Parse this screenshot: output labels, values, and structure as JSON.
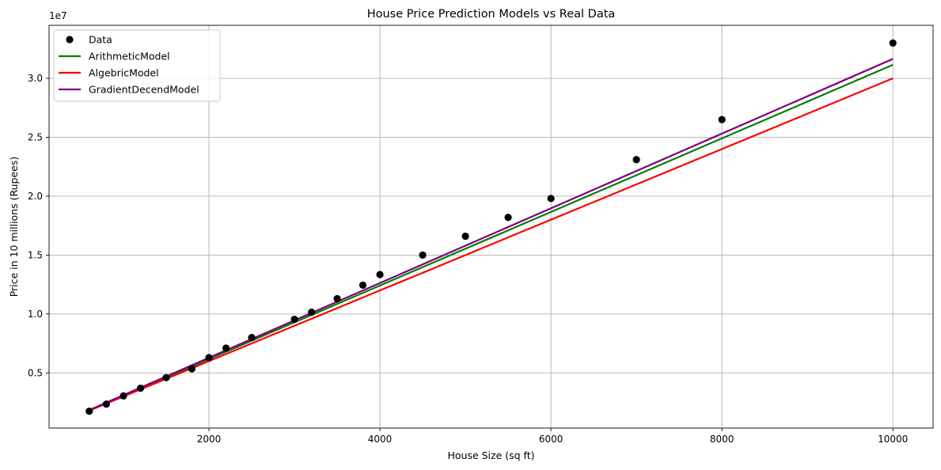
{
  "chart_data": {
    "type": "scatter",
    "title": "House Price Prediction Models vs Real Data",
    "xlabel": "House Size (sq ft)",
    "ylabel": "Price in 10 millions (Rupees)",
    "offset_text": "1e7",
    "y_scale_factor": 10000000,
    "xlim": [
      130,
      10470
    ],
    "ylim": [
      320000,
      34500000
    ],
    "xticks": [
      2000,
      4000,
      6000,
      8000,
      10000
    ],
    "xtick_labels": [
      "2000",
      "4000",
      "6000",
      "8000",
      "10000"
    ],
    "yticks": [
      5000000,
      10000000,
      15000000,
      20000000,
      25000000,
      30000000
    ],
    "ytick_labels": [
      "0.5",
      "1.0",
      "1.5",
      "2.0",
      "2.5",
      "3.0"
    ],
    "grid": true,
    "legend_position": "top-left",
    "points": {
      "name": "Data",
      "color": "#000000",
      "x": [
        600,
        800,
        1000,
        1200,
        1500,
        1800,
        2000,
        2200,
        2500,
        3000,
        3200,
        3500,
        3800,
        4000,
        4500,
        5000,
        5500,
        6000,
        7000,
        8000,
        10000
      ],
      "y": [
        1750000,
        2350000,
        3050000,
        3700000,
        4600000,
        5350000,
        6300000,
        7100000,
        8000000,
        9550000,
        10150000,
        11300000,
        12450000,
        13350000,
        15000000,
        16600000,
        18200000,
        19800000,
        23100000,
        26500000,
        33000000
      ]
    },
    "series": [
      {
        "name": "ArithmeticModel",
        "color": "#008000",
        "x": [
          600,
          10000
        ],
        "y": [
          1800000,
          31150000
        ]
      },
      {
        "name": "AlgebricModel",
        "color": "#ff0000",
        "x": [
          600,
          10000
        ],
        "y": [
          1800000,
          30000000
        ]
      },
      {
        "name": "GradientDecendModel",
        "color": "#800080",
        "x": [
          600,
          10000
        ],
        "y": [
          1850000,
          31650000
        ]
      }
    ]
  }
}
